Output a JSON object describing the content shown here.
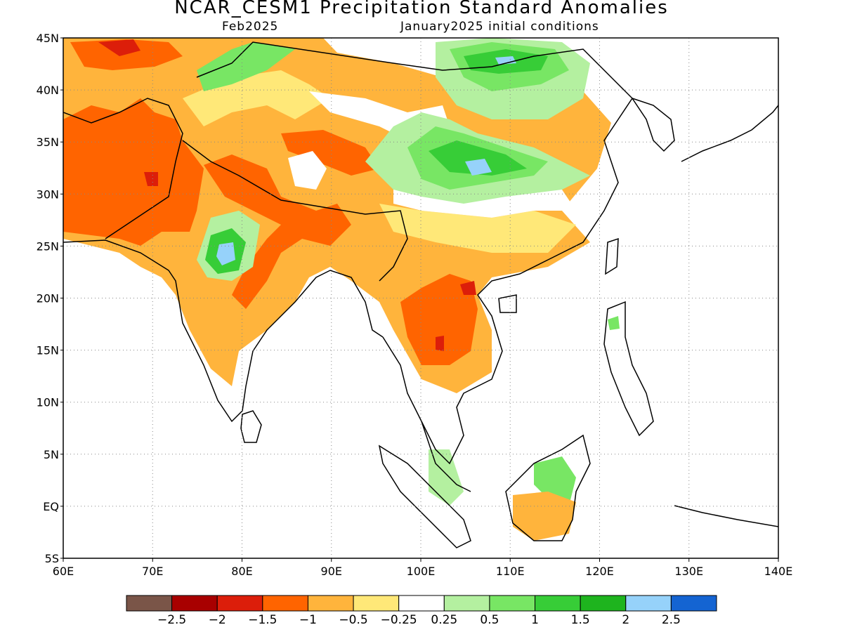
{
  "header": {
    "title": "NCAR_CESM1 Precipitation Standard Anomalies",
    "valid_month": "Feb2025",
    "init_conditions": "January2025 initial conditions"
  },
  "map": {
    "lon_range": [
      60,
      140
    ],
    "lat_range": [
      -5,
      45
    ],
    "x_ticks": [
      "60E",
      "70E",
      "80E",
      "90E",
      "100E",
      "110E",
      "120E",
      "130E",
      "140E"
    ],
    "y_ticks": [
      "45N",
      "40N",
      "35N",
      "30N",
      "25N",
      "20N",
      "15N",
      "10N",
      "5N",
      "EQ",
      "5S"
    ],
    "grid": "dotted"
  },
  "colorbar": {
    "colors": [
      "#7a5548",
      "#a80000",
      "#dc1e0a",
      "#ff6400",
      "#ffb43c",
      "#ffe878",
      "#ffffff",
      "#b4f0a0",
      "#78e664",
      "#37cd37",
      "#1eb41e",
      "#96d2fa",
      "#1464d2"
    ],
    "labels": [
      "−2.5",
      "−2",
      "−1.5",
      "−1",
      "−0.5",
      "−0.25",
      "0.25",
      "0.5",
      "1",
      "1.5",
      "2",
      "2.5"
    ]
  }
}
